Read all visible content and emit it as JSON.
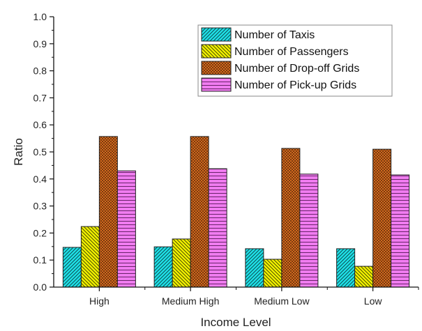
{
  "chart_data": {
    "type": "bar",
    "title": "",
    "xlabel": "Income Level",
    "ylabel": "Ratio",
    "ylim": [
      0,
      1.0
    ],
    "yticks": [
      "0.0",
      "0.1",
      "0.2",
      "0.3",
      "0.4",
      "0.5",
      "0.6",
      "0.7",
      "0.8",
      "0.9",
      "1.0"
    ],
    "categories": [
      "High",
      "Medium High",
      "Medium Low",
      "Low"
    ],
    "legend_position": "top-right",
    "grid": false,
    "series": [
      {
        "name": "Number of Taxis",
        "color": "#1ee0e6",
        "pattern": "diagonal-up",
        "values": [
          0.147,
          0.149,
          0.142,
          0.142
        ]
      },
      {
        "name": "Number of Passengers",
        "color": "#f0f000",
        "pattern": "diagonal-down",
        "values": [
          0.224,
          0.178,
          0.103,
          0.077
        ]
      },
      {
        "name": "Number of Drop-off Grids",
        "color": "#d2691e",
        "pattern": "checker",
        "values": [
          0.557,
          0.557,
          0.513,
          0.51
        ]
      },
      {
        "name": "Number of Pick-up Grids",
        "color": "#f07cf0",
        "pattern": "horizontal",
        "values": [
          0.43,
          0.438,
          0.418,
          0.415
        ]
      }
    ]
  }
}
